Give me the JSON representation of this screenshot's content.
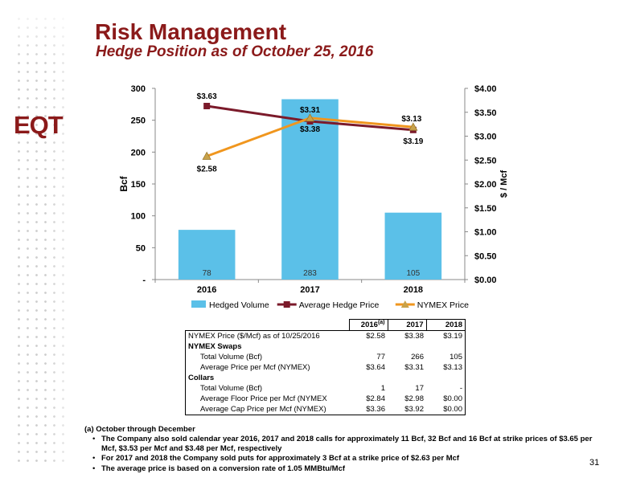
{
  "slide": {
    "title": "Risk Management",
    "subtitle": "Hedge Position as of October 25, 2016",
    "logo_text": "EQT",
    "brand_color": "#8b1a1a",
    "page_number": "31"
  },
  "chart_data": {
    "type": "bar",
    "categories": [
      "2016",
      "2017",
      "2018"
    ],
    "series": [
      {
        "name": "Hedged Volume",
        "type": "bar",
        "axis": "left",
        "values": [
          78,
          283,
          105
        ],
        "labels": [
          "78",
          "283",
          "105"
        ],
        "color": "#5bc0e8"
      },
      {
        "name": "Average Hedge Price",
        "type": "line",
        "axis": "right",
        "values": [
          3.63,
          3.31,
          3.13
        ],
        "labels": [
          "$3.63",
          "$3.31",
          "$3.13"
        ],
        "color": "#7b1a2a"
      },
      {
        "name": "NYMEX Price",
        "type": "line",
        "axis": "right",
        "values": [
          2.58,
          3.38,
          3.19
        ],
        "labels": [
          "$2.58",
          "$3.38",
          "$3.19"
        ],
        "color": "#f0961e"
      }
    ],
    "ylabel": "Bcf",
    "y2label": "$ / Mcf",
    "ylim": [
      0,
      300
    ],
    "y2lim": [
      0,
      4
    ],
    "yticks": [
      "-",
      "50",
      "100",
      "150",
      "200",
      "250",
      "300"
    ],
    "y2ticks": [
      "$0.00",
      "$0.50",
      "$1.00",
      "$1.50",
      "$2.00",
      "$2.50",
      "$3.00",
      "$3.50",
      "$4.00"
    ],
    "grid": false,
    "legend_position": "bottom"
  },
  "table": {
    "headers": [
      "",
      "2016",
      "2017",
      "2018"
    ],
    "header_superscript": "(a)",
    "rows": [
      {
        "label": "NYMEX Price ($/Mcf) as of 10/25/2016",
        "values": [
          "$2.58",
          "$3.38",
          "$3.19"
        ],
        "style": "normal"
      },
      {
        "label": "NYMEX Swaps",
        "values": [
          "",
          "",
          ""
        ],
        "style": "section"
      },
      {
        "label": "Total Volume (Bcf)",
        "values": [
          "77",
          "266",
          "105"
        ],
        "style": "indent"
      },
      {
        "label": "Average Price per Mcf (NYMEX)",
        "values": [
          "$3.64",
          "$3.31",
          "$3.13"
        ],
        "style": "indent"
      },
      {
        "label": "Collars",
        "values": [
          "",
          "",
          ""
        ],
        "style": "section"
      },
      {
        "label": "Total Volume (Bcf)",
        "values": [
          "1",
          "17",
          "-"
        ],
        "style": "indent"
      },
      {
        "label": "Average Floor Price per Mcf (NYMEX",
        "values": [
          "$2.84",
          "$2.98",
          "$0.00"
        ],
        "style": "indent"
      },
      {
        "label": "Average Cap Price per Mcf (NYMEX)",
        "values": [
          "$3.36",
          "$3.92",
          "$0.00"
        ],
        "style": "indent"
      }
    ]
  },
  "footnotes": {
    "heading": "(a) October through December",
    "bullets": [
      "The Company also sold calendar year 2016, 2017 and 2018 calls for approximately 11 Bcf, 32 Bcf and 16 Bcf at strike prices of $3.65 per Mcf, $3.53 per Mcf and $3.48 per Mcf, respectively",
      "For 2017 and 2018 the Company sold puts for approximately 3 Bcf at a strike price of $2.63 per Mcf",
      "The average price is based on a conversion rate of 1.05 MMBtu/Mcf"
    ]
  }
}
